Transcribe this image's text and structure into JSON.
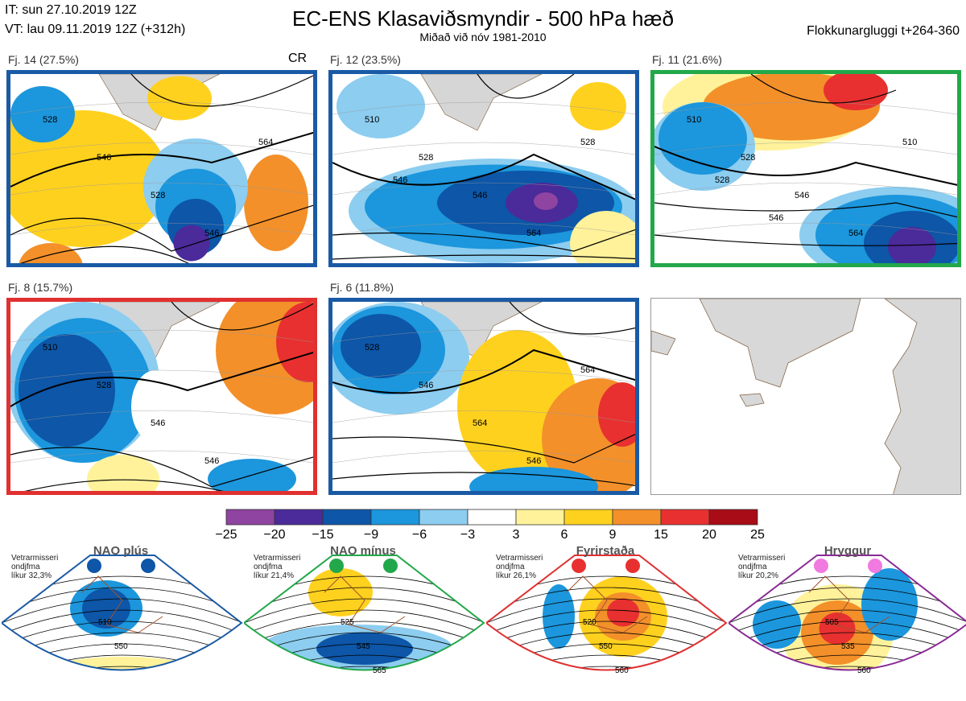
{
  "header": {
    "it": "IT: sun 27.10.2019 12Z",
    "vt": "VT: lau 09.11.2019 12Z  (+312h)",
    "title": "EC-ENS Klasaviðsmyndir - 500 hPa hæð",
    "subtitle": "Miðað við nóv 1981-2010",
    "window": "Flokkunargluggi t+264-360"
  },
  "clusters": [
    {
      "label": "Fj. 14 (27.5%)",
      "border_color": "#1a5aa5",
      "badge": "CR",
      "contours": [
        "528",
        "546",
        "528",
        "546",
        "564"
      ]
    },
    {
      "label": "Fj. 12 (23.5%)",
      "border_color": "#1a5aa5",
      "badge": "",
      "contours": [
        "510",
        "528",
        "546",
        "564",
        "528",
        "546"
      ]
    },
    {
      "label": "Fj. 11 (21.6%)",
      "border_color": "#22a84a",
      "badge": "",
      "contours": [
        "510",
        "528",
        "546",
        "564",
        "510",
        "528",
        "546"
      ]
    },
    {
      "label": "Fj. 8 (15.7%)",
      "border_color": "#e03030",
      "badge": "",
      "contours": [
        "510",
        "528",
        "546",
        "546"
      ]
    },
    {
      "label": "Fj. 6 (11.8%)",
      "border_color": "#1a5aa5",
      "badge": "",
      "contours": [
        "528",
        "546",
        "564",
        "546",
        "564"
      ]
    }
  ],
  "colorbar": {
    "ticks": [
      "−25",
      "−20",
      "−15",
      "−9",
      "−6",
      "−3",
      "3",
      "6",
      "9",
      "15",
      "20",
      "25"
    ],
    "colors": [
      "#8e44a0",
      "#4b2a9a",
      "#0d56a8",
      "#1c96dc",
      "#8ccdf0",
      "#ffffff",
      "#fff29a",
      "#ffd11f",
      "#f3902a",
      "#e83030",
      "#a80c16"
    ]
  },
  "regimes": [
    {
      "name": "NAO plús",
      "info": [
        "Vetrarmisseri",
        "ondjfma",
        "líkur 32,3%"
      ],
      "color": "#1a5aa5",
      "dot_color": "#0d56a8",
      "contours": [
        "510",
        "550"
      ]
    },
    {
      "name": "NAO mínus",
      "info": [
        "Vetrarmisseri",
        "ondjfma",
        "líkur 21,4%"
      ],
      "color": "#22a84a",
      "dot_color": "#22a84a",
      "contours": [
        "525",
        "545",
        "565"
      ]
    },
    {
      "name": "Fyrirstaða",
      "info": [
        "Vetrarmisseri",
        "ondjfma",
        "líkur 26,1%"
      ],
      "color": "#e03030",
      "dot_color": "#e83030",
      "contours": [
        "520",
        "550",
        "560"
      ]
    },
    {
      "name": "Hryggur",
      "info": [
        "Vetrarmisseri",
        "ondjfma",
        "líkur 20,2%"
      ],
      "color": "#8a2a96",
      "dot_color": "#f07ae0",
      "contours": [
        "505",
        "535",
        "560"
      ]
    }
  ]
}
